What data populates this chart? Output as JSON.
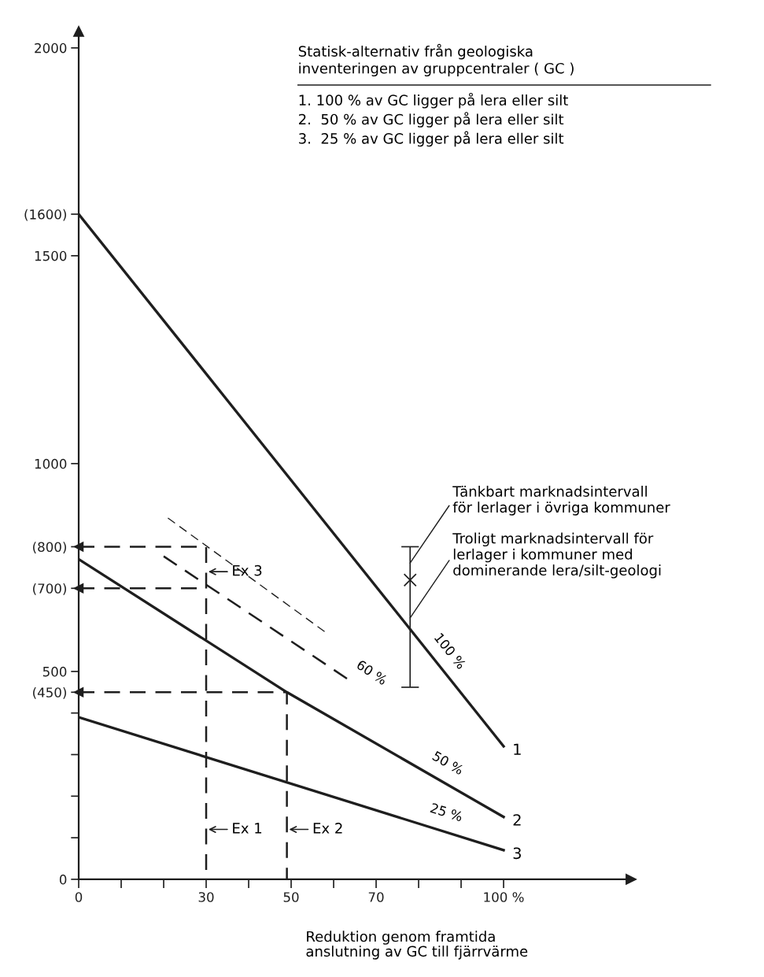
{
  "chart_data": {
    "type": "line",
    "xlabel": "Reduktion genom framtida\nanslutning av GC till fjärrvärme",
    "xlim": [
      0,
      130
    ],
    "ylim": [
      0,
      2040
    ],
    "xticks": [
      0,
      {
        "value": 10,
        "label": null
      },
      {
        "value": 20,
        "label": null
      },
      30,
      {
        "value": 40,
        "label": null
      },
      50,
      {
        "value": 60,
        "label": null
      },
      70,
      {
        "value": 80,
        "label": null
      },
      {
        "value": 90,
        "label": null
      },
      {
        "value": 100,
        "label": "100 %"
      }
    ],
    "yticks": [
      0,
      {
        "value": 100,
        "label": null
      },
      {
        "value": 200,
        "label": null
      },
      {
        "value": 300,
        "label": null
      },
      {
        "value": 400,
        "label": null
      },
      {
        "value": 450,
        "label": "(450)"
      },
      500,
      {
        "value": 700,
        "label": "(700)"
      },
      {
        "value": 800,
        "label": "(800)"
      },
      1000,
      1500,
      {
        "value": 1600,
        "label": "(1600)"
      },
      2000
    ],
    "grid": false,
    "legend": false,
    "series": [
      {
        "name": "100 %",
        "color": "#1e1e1e",
        "x": [
          0,
          100
        ],
        "values": [
          1600,
          320
        ]
      },
      {
        "name": "50 %",
        "color": "#1e1e1e",
        "x": [
          0,
          49,
          100
        ],
        "values": [
          770,
          450,
          150
        ]
      },
      {
        "name": "25 %",
        "color": "#1e1e1e",
        "x": [
          0,
          100
        ],
        "values": [
          390,
          70
        ]
      },
      {
        "name": "60 %",
        "color": "#1e1e1e",
        "line_style": "dashed",
        "x": [
          20,
          64
        ],
        "values": [
          777,
          477
        ]
      },
      {
        "color": "#1e1e1e",
        "line_style": "dashed",
        "x": [
          21,
          58
        ],
        "values": [
          869,
          595
        ]
      },
      {
        "color": "#1e1e1e",
        "line_style": "dashed",
        "x": [
          0,
          30,
          30
        ],
        "values": [
          800,
          800,
          0
        ]
      },
      {
        "color": "#1e1e1e",
        "line_style": "dashed",
        "x": [
          0,
          30
        ],
        "values": [
          700,
          700
        ]
      },
      {
        "color": "#1e1e1e",
        "line_style": "dashed",
        "x": [
          0,
          49,
          49
        ],
        "values": [
          450,
          450,
          0
        ]
      },
      {
        "type": "scatter",
        "color": "#1e1e1e",
        "marker": "cross",
        "x": [
          78
        ],
        "values": [
          720
        ],
        "errors": [
          [
            462,
            800
          ]
        ]
      }
    ],
    "annotations": [
      "Statisk-alternativ från geologiska\ninventeringen av gruppcentraler ( GC )",
      "1. 100 % av GC ligger på lera eller silt\n2.  50 % av GC ligger på lera eller silt\n3.  25 % av GC ligger på lera eller silt",
      {
        "text": "1",
        "x": 100,
        "y": 320
      },
      {
        "text": "2",
        "x": 100,
        "y": 150
      },
      {
        "text": "3",
        "x": 100,
        "y": 70
      },
      {
        "text": "Ex 1",
        "x": 30,
        "y": 120
      },
      {
        "text": "Ex 2",
        "x": 49,
        "y": 120
      },
      {
        "text": "Ex 3",
        "x": 30,
        "y": 740
      },
      {
        "text": "Tänkbart marknadsintervall\nför lerlager i övriga kommuner",
        "x": 78,
        "y": 761
      },
      {
        "text": "Troligt marknadsintervall för\nlerlager i kommuner med\ndominerande lera/silt-geologi",
        "x": 78,
        "y": 629
      }
    ]
  }
}
